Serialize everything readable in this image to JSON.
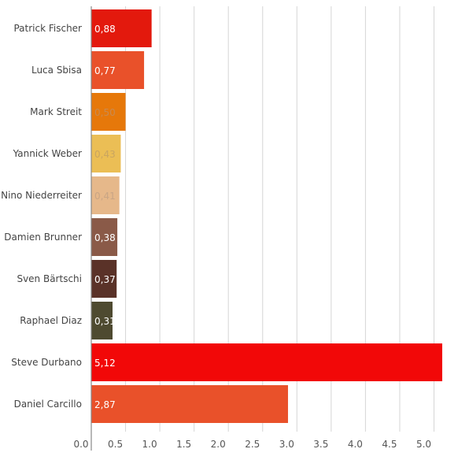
{
  "chart_data": {
    "type": "bar",
    "orientation": "horizontal",
    "title": "",
    "xlabel": "",
    "ylabel": "",
    "xlim": [
      0,
      5.2
    ],
    "grid": true,
    "categories": [
      "Patrick Fischer",
      "Luca Sbisa",
      "Mark Streit",
      "Yannick Weber",
      "Nino Niederreiter",
      "Damien Brunner",
      "Sven Bärtschi",
      "Raphael Diaz",
      "Steve Durbano",
      "Daniel Carcillo"
    ],
    "values": [
      0.88,
      0.77,
      0.5,
      0.43,
      0.41,
      0.38,
      0.37,
      0.31,
      5.12,
      2.87
    ],
    "data_labels": [
      "0,88",
      "0,77",
      "0,50",
      "0,43",
      "0,41",
      "0,38",
      "0,37",
      "0,31",
      "5,12",
      "2,87"
    ],
    "bar_colors": [
      "#e3190d",
      "#e9512a",
      "#e6780a",
      "#ebbe55",
      "#e6b88a",
      "#8a5a48",
      "#5a3228",
      "#4e4a30",
      "#f20808",
      "#e9512a"
    ],
    "label_colors": [
      "#ffffff",
      "#ffffff",
      "#c98a50",
      "#c9a560",
      "#c9a585",
      "#ffffff",
      "#ffffff",
      "#ffffff",
      "#ffffff",
      "#ffffff"
    ],
    "x_ticks": [
      "0.0",
      "0.5",
      "1.0",
      "1.5",
      "2.0",
      "2.5",
      "3.0",
      "3.5",
      "4.0",
      "4.5",
      "5.0"
    ],
    "x_tick_values": [
      0,
      0.5,
      1.0,
      1.5,
      2.0,
      2.5,
      3.0,
      3.5,
      4.0,
      4.5,
      5.0
    ]
  }
}
